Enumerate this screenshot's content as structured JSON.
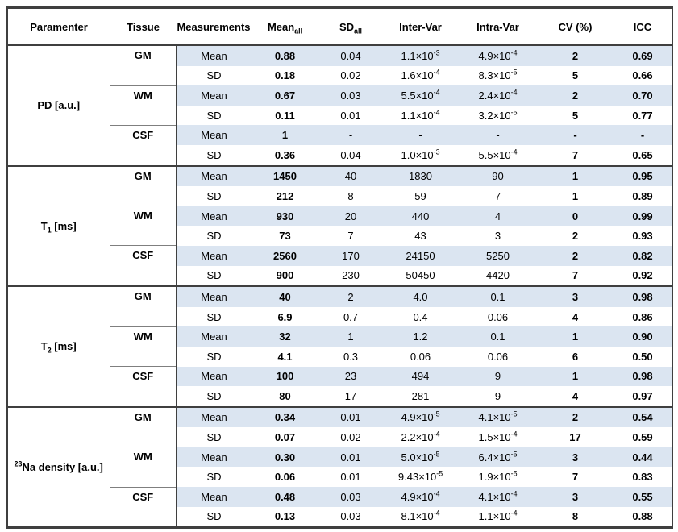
{
  "table": {
    "colors": {
      "shaded_row": "#dbe5f1",
      "plain_row": "#ffffff",
      "border_strong": "#3f3f3f",
      "border_light": "#7f7f7f",
      "text": "#000000"
    },
    "columns": [
      {
        "key": "parameter",
        "label": "Paramenter"
      },
      {
        "key": "tissue",
        "label": "Tissue"
      },
      {
        "key": "measurement",
        "label": "Measurements"
      },
      {
        "key": "mean_all",
        "label": "Mean_{all}"
      },
      {
        "key": "sd_all",
        "label": "SD_{all}"
      },
      {
        "key": "inter_var",
        "label": "Inter-Var"
      },
      {
        "key": "intra_var",
        "label": "Intra-Var"
      },
      {
        "key": "cv",
        "label": "CV (%)"
      },
      {
        "key": "icc",
        "label": "ICC"
      }
    ],
    "bold_columns": [
      "mean_all",
      "cv",
      "icc"
    ],
    "groups": [
      {
        "parameter": "PD [a.u.]",
        "tissues": [
          {
            "tissue": "GM",
            "rows": [
              {
                "measurement": "Mean",
                "mean_all": "0.88",
                "sd_all": "0.04",
                "inter_var": "1.1×10^{-3}",
                "intra_var": "4.9×10^{-4}",
                "cv": "2",
                "icc": "0.69"
              },
              {
                "measurement": "SD",
                "mean_all": "0.18",
                "sd_all": "0.02",
                "inter_var": "1.6×10^{-4}",
                "intra_var": "8.3×10^{-5}",
                "cv": "5",
                "icc": "0.66"
              }
            ]
          },
          {
            "tissue": "WM",
            "rows": [
              {
                "measurement": "Mean",
                "mean_all": "0.67",
                "sd_all": "0.03",
                "inter_var": "5.5×10^{-4}",
                "intra_var": "2.4×10^{-4}",
                "cv": "2",
                "icc": "0.70"
              },
              {
                "measurement": "SD",
                "mean_all": "0.11",
                "sd_all": "0.01",
                "inter_var": "1.1×10^{-4}",
                "intra_var": "3.2×10^{-5}",
                "cv": "5",
                "icc": "0.77"
              }
            ]
          },
          {
            "tissue": "CSF",
            "rows": [
              {
                "measurement": "Mean",
                "mean_all": "1",
                "sd_all": "-",
                "inter_var": "-",
                "intra_var": "-",
                "cv": "-",
                "icc": "-"
              },
              {
                "measurement": "SD",
                "mean_all": "0.36",
                "sd_all": "0.04",
                "inter_var": "1.0×10^{-3}",
                "intra_var": "5.5×10^{-4}",
                "cv": "7",
                "icc": "0.65"
              }
            ]
          }
        ]
      },
      {
        "parameter": "T_{1} [ms]",
        "tissues": [
          {
            "tissue": "GM",
            "rows": [
              {
                "measurement": "Mean",
                "mean_all": "1450",
                "sd_all": "40",
                "inter_var": "1830",
                "intra_var": "90",
                "cv": "1",
                "icc": "0.95"
              },
              {
                "measurement": "SD",
                "mean_all": "212",
                "sd_all": "8",
                "inter_var": "59",
                "intra_var": "7",
                "cv": "1",
                "icc": "0.89"
              }
            ]
          },
          {
            "tissue": "WM",
            "rows": [
              {
                "measurement": "Mean",
                "mean_all": "930",
                "sd_all": "20",
                "inter_var": "440",
                "intra_var": "4",
                "cv": "0",
                "icc": "0.99"
              },
              {
                "measurement": "SD",
                "mean_all": "73",
                "sd_all": "7",
                "inter_var": "43",
                "intra_var": "3",
                "cv": "2",
                "icc": "0.93"
              }
            ]
          },
          {
            "tissue": "CSF",
            "rows": [
              {
                "measurement": "Mean",
                "mean_all": "2560",
                "sd_all": "170",
                "inter_var": "24150",
                "intra_var": "5250",
                "cv": "2",
                "icc": "0.82"
              },
              {
                "measurement": "SD",
                "mean_all": "900",
                "sd_all": "230",
                "inter_var": "50450",
                "intra_var": "4420",
                "cv": "7",
                "icc": "0.92"
              }
            ]
          }
        ]
      },
      {
        "parameter": "T_{2} [ms]",
        "tissues": [
          {
            "tissue": "GM",
            "rows": [
              {
                "measurement": "Mean",
                "mean_all": "40",
                "sd_all": "2",
                "inter_var": "4.0",
                "intra_var": "0.1",
                "cv": "3",
                "icc": "0.98"
              },
              {
                "measurement": "SD",
                "mean_all": "6.9",
                "sd_all": "0.7",
                "inter_var": "0.4",
                "intra_var": "0.06",
                "cv": "4",
                "icc": "0.86"
              }
            ]
          },
          {
            "tissue": "WM",
            "rows": [
              {
                "measurement": "Mean",
                "mean_all": "32",
                "sd_all": "1",
                "inter_var": "1.2",
                "intra_var": "0.1",
                "cv": "1",
                "icc": "0.90"
              },
              {
                "measurement": "SD",
                "mean_all": "4.1",
                "sd_all": "0.3",
                "inter_var": "0.06",
                "intra_var": "0.06",
                "cv": "6",
                "icc": "0.50"
              }
            ]
          },
          {
            "tissue": "CSF",
            "rows": [
              {
                "measurement": "Mean",
                "mean_all": "100",
                "sd_all": "23",
                "inter_var": "494",
                "intra_var": "9",
                "cv": "1",
                "icc": "0.98"
              },
              {
                "measurement": "SD",
                "mean_all": "80",
                "sd_all": "17",
                "inter_var": "281",
                "intra_var": "9",
                "cv": "4",
                "icc": "0.97"
              }
            ]
          }
        ]
      },
      {
        "parameter": "^{23}Na density [a.u.]",
        "tissues": [
          {
            "tissue": "GM",
            "rows": [
              {
                "measurement": "Mean",
                "mean_all": "0.34",
                "sd_all": "0.01",
                "inter_var": "4.9×10^{-5}",
                "intra_var": "4.1×10^{-5}",
                "cv": "2",
                "icc": "0.54"
              },
              {
                "measurement": "SD",
                "mean_all": "0.07",
                "sd_all": "0.02",
                "inter_var": "2.2×10^{-4}",
                "intra_var": "1.5×10^{-4}",
                "cv": "17",
                "icc": "0.59"
              }
            ]
          },
          {
            "tissue": "WM",
            "rows": [
              {
                "measurement": "Mean",
                "mean_all": "0.30",
                "sd_all": "0.01",
                "inter_var": "5.0×10^{-5}",
                "intra_var": "6.4×10^{-5}",
                "cv": "3",
                "icc": "0.44"
              },
              {
                "measurement": "SD",
                "mean_all": "0.06",
                "sd_all": "0.01",
                "inter_var": "9.43×10^{-5}",
                "intra_var": "1.9×10^{-5}",
                "cv": "7",
                "icc": "0.83"
              }
            ]
          },
          {
            "tissue": "CSF",
            "rows": [
              {
                "measurement": "Mean",
                "mean_all": "0.48",
                "sd_all": "0.03",
                "inter_var": "4.9×10^{-4}",
                "intra_var": "4.1×10^{-4}",
                "cv": "3",
                "icc": "0.55"
              },
              {
                "measurement": "SD",
                "mean_all": "0.13",
                "sd_all": "0.03",
                "inter_var": "8.1×10^{-4}",
                "intra_var": "1.1×10^{-4}",
                "cv": "8",
                "icc": "0.88"
              }
            ]
          }
        ]
      }
    ]
  }
}
